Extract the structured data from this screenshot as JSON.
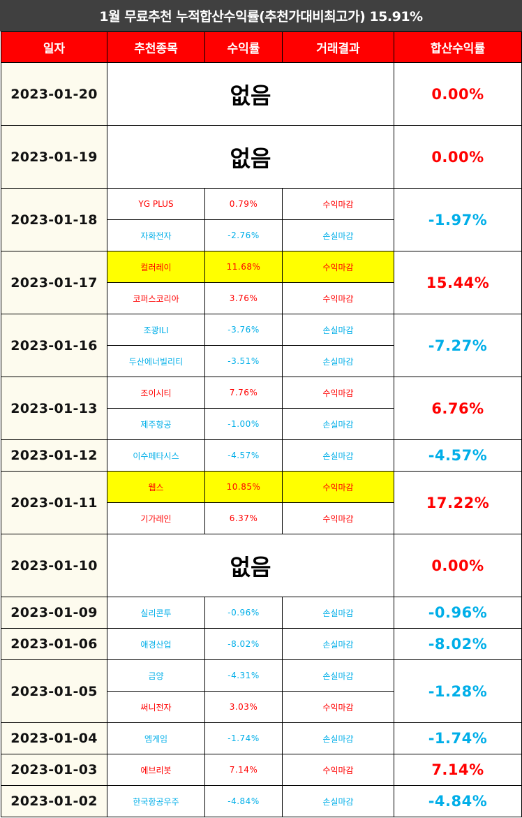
{
  "title": "1월 무료추천 누적합산수익률(추천가대비최고가) 15.91%",
  "headers": [
    "일자",
    "추천종목",
    "수익률",
    "거래결과",
    "합산수익률"
  ],
  "colors": {
    "header_bg": "#ff0000",
    "title_bg": "#404040",
    "profit": "#ff0000",
    "loss": "#00aee8",
    "highlight": "#ffff00"
  },
  "days": [
    {
      "date": "2023-01-20",
      "none_label": "없음",
      "total": "0.00%",
      "picks": []
    },
    {
      "date": "2023-01-19",
      "none_label": "없음",
      "total": "0.00%",
      "picks": []
    },
    {
      "date": "2023-01-18",
      "total": "-1.97%",
      "picks": [
        {
          "stock": "YG PLUS",
          "pct": "0.79%",
          "result": "수익마감"
        },
        {
          "stock": "자화전자",
          "pct": "-2.76%",
          "result": "손실마감"
        }
      ]
    },
    {
      "date": "2023-01-17",
      "total": "15.44%",
      "picks": [
        {
          "stock": "컬러레이",
          "pct": "11.68%",
          "result": "수익마감",
          "highlight": true
        },
        {
          "stock": "코퍼스코리아",
          "pct": "3.76%",
          "result": "수익마감"
        }
      ]
    },
    {
      "date": "2023-01-16",
      "total": "-7.27%",
      "picks": [
        {
          "stock": "조광ILI",
          "pct": "-3.76%",
          "result": "손실마감"
        },
        {
          "stock": "두산에너빌리티",
          "pct": "-3.51%",
          "result": "손실마감"
        }
      ]
    },
    {
      "date": "2023-01-13",
      "total": "6.76%",
      "picks": [
        {
          "stock": "조이시티",
          "pct": "7.76%",
          "result": "수익마감"
        },
        {
          "stock": "제주항공",
          "pct": "-1.00%",
          "result": "손실마감"
        }
      ]
    },
    {
      "date": "2023-01-12",
      "total": "-4.57%",
      "picks": [
        {
          "stock": "이수페타시스",
          "pct": "-4.57%",
          "result": "손실마감"
        }
      ]
    },
    {
      "date": "2023-01-11",
      "total": "17.22%",
      "picks": [
        {
          "stock": "웹스",
          "pct": "10.85%",
          "result": "수익마감",
          "highlight": true
        },
        {
          "stock": "기가레인",
          "pct": "6.37%",
          "result": "수익마감"
        }
      ]
    },
    {
      "date": "2023-01-10",
      "none_label": "없음",
      "total": "0.00%",
      "picks": []
    },
    {
      "date": "2023-01-09",
      "total": "-0.96%",
      "picks": [
        {
          "stock": "실리콘투",
          "pct": "-0.96%",
          "result": "손실마감"
        }
      ]
    },
    {
      "date": "2023-01-06",
      "total": "-8.02%",
      "picks": [
        {
          "stock": "애경산업",
          "pct": "-8.02%",
          "result": "손실마감"
        }
      ]
    },
    {
      "date": "2023-01-05",
      "total": "-1.28%",
      "picks": [
        {
          "stock": "금양",
          "pct": "-4.31%",
          "result": "손실마감"
        },
        {
          "stock": "써니전자",
          "pct": "3.03%",
          "result": "수익마감"
        }
      ]
    },
    {
      "date": "2023-01-04",
      "total": "-1.74%",
      "picks": [
        {
          "stock": "엠게임",
          "pct": "-1.74%",
          "result": "손실마감"
        }
      ]
    },
    {
      "date": "2023-01-03",
      "total": "7.14%",
      "picks": [
        {
          "stock": "에브리봇",
          "pct": "7.14%",
          "result": "수익마감"
        }
      ]
    },
    {
      "date": "2023-01-02",
      "total": "-4.84%",
      "picks": [
        {
          "stock": "한국항공우주",
          "pct": "-4.84%",
          "result": "손실마감"
        }
      ]
    }
  ]
}
